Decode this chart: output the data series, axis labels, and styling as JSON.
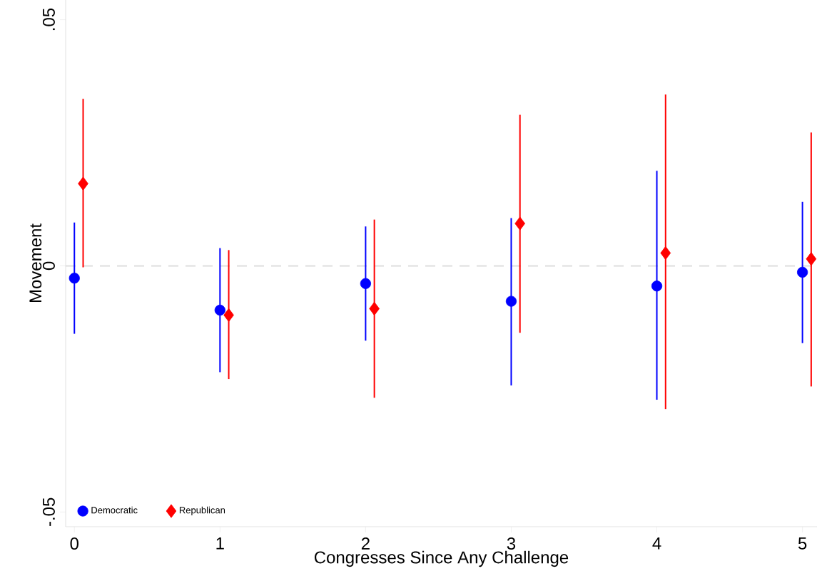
{
  "chart_data": {
    "type": "scatter",
    "xlabel": "Congresses Since Any Challenge",
    "ylabel": "Movement",
    "xlim": [
      -0.06,
      5.1
    ],
    "ylim": [
      -0.053,
      0.054
    ],
    "xticks": [
      0,
      1,
      2,
      3,
      4,
      5
    ],
    "yticks": [
      {
        "value": -0.05,
        "label": "-.05"
      },
      {
        "value": 0,
        "label": "0"
      },
      {
        "value": 0.05,
        "label": ".05"
      }
    ],
    "grid": false,
    "legend": "bottom left",
    "ref_lines": [
      {
        "axis": "y",
        "value": 0,
        "color": "#d9d9d9",
        "line_style": "dashed"
      }
    ],
    "series": [
      {
        "name": "Democratic",
        "color": "#0000ff",
        "marker": "circle",
        "x": [
          0,
          1,
          2,
          3,
          4,
          5
        ],
        "values": [
          -0.0025,
          -0.009,
          -0.0036,
          -0.0072,
          -0.0041,
          -0.0013
        ],
        "errors": [
          [
            -0.0138,
            0.0088
          ],
          [
            -0.0216,
            0.0036
          ],
          [
            -0.0152,
            0.008
          ],
          [
            -0.0243,
            0.0097
          ],
          [
            -0.0272,
            0.0193
          ],
          [
            -0.0157,
            0.013
          ]
        ]
      },
      {
        "name": "Republican",
        "color": "#ff0000",
        "marker": "diamond",
        "x": [
          0.06,
          1.06,
          2.06,
          3.06,
          4.06,
          5.06
        ],
        "values": [
          0.0167,
          -0.01,
          -0.0087,
          0.0086,
          0.0026,
          0.0014
        ],
        "errors": [
          [
            -0.0003,
            0.0339
          ],
          [
            -0.023,
            0.0032
          ],
          [
            -0.0268,
            0.0094
          ],
          [
            -0.0136,
            0.0307
          ],
          [
            -0.0291,
            0.0348
          ],
          [
            -0.0245,
            0.0271
          ]
        ]
      }
    ]
  }
}
